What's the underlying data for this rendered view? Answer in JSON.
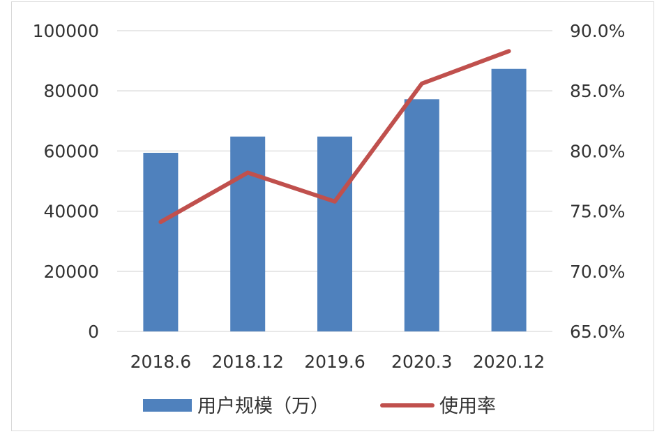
{
  "chart_data": {
    "type": "bar",
    "categories": [
      "2018.6",
      "2018.12",
      "2019.6",
      "2020.3",
      "2020.12"
    ],
    "series": [
      {
        "name": "用户规模（万）",
        "type": "bar",
        "axis": "left",
        "values": [
          59400,
          64800,
          64800,
          77200,
          87300
        ]
      },
      {
        "name": "使用率",
        "type": "line",
        "axis": "right",
        "values": [
          74.1,
          78.2,
          75.8,
          85.6,
          88.3
        ]
      }
    ],
    "y_left": {
      "ticks": [
        "0",
        "20000",
        "40000",
        "60000",
        "80000",
        "100000"
      ],
      "ylim": [
        0,
        100000
      ]
    },
    "y_right": {
      "ticks": [
        "65.0%",
        "70.0%",
        "75.0%",
        "80.0%",
        "85.0%",
        "90.0%"
      ],
      "ylim": [
        65,
        90
      ]
    },
    "grid": true,
    "legend_position": "bottom",
    "colors": {
      "bar": "#4f81bd",
      "line": "#c0504d",
      "grid": "#d9d9d9"
    }
  }
}
